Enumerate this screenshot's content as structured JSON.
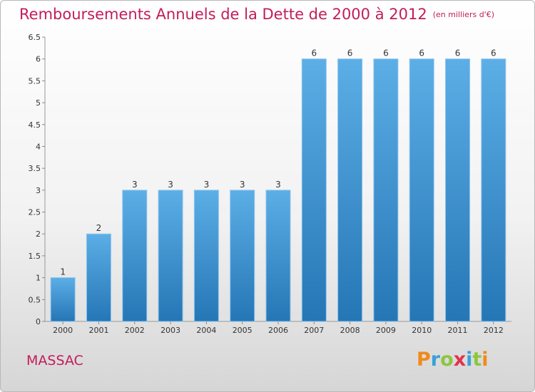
{
  "title": "Remboursements Annuels de la Dette de 2000 à 2012",
  "unit_note": "(en milliers d'€)",
  "city": "MASSAC",
  "logo": {
    "text": "Proxiti",
    "letters": [
      {
        "ch": "P",
        "color": "#f08a1c"
      },
      {
        "ch": "r",
        "color": "#3aa0d8"
      },
      {
        "ch": "o",
        "color": "#8cc63f"
      },
      {
        "ch": "x",
        "color": "#e2334b"
      },
      {
        "ch": "i",
        "color": "#3aa0d8"
      },
      {
        "ch": "t",
        "color": "#8cc63f"
      },
      {
        "ch": "i",
        "color": "#f08a1c"
      }
    ]
  },
  "colors": {
    "accent": "#c21d5a",
    "bar_top": "#5caee6",
    "bar_bottom": "#2576b5"
  },
  "chart_data": {
    "type": "bar",
    "categories": [
      "2000",
      "2001",
      "2002",
      "2003",
      "2004",
      "2005",
      "2006",
      "2007",
      "2008",
      "2009",
      "2010",
      "2011",
      "2012"
    ],
    "values": [
      1,
      2,
      3,
      3,
      3,
      3,
      3,
      6,
      6,
      6,
      6,
      6,
      6
    ],
    "data_labels": [
      "1",
      "2",
      "3",
      "3",
      "3",
      "3",
      "3",
      "6",
      "6",
      "6",
      "6",
      "6",
      "6"
    ],
    "yticks": [
      "0",
      "0.5",
      "1",
      "1.5",
      "2",
      "2.5",
      "3",
      "3.5",
      "4",
      "4.5",
      "5",
      "5.5",
      "6",
      "6.5"
    ],
    "ylim": [
      0,
      6.5
    ],
    "grid": false,
    "legend": "none"
  }
}
